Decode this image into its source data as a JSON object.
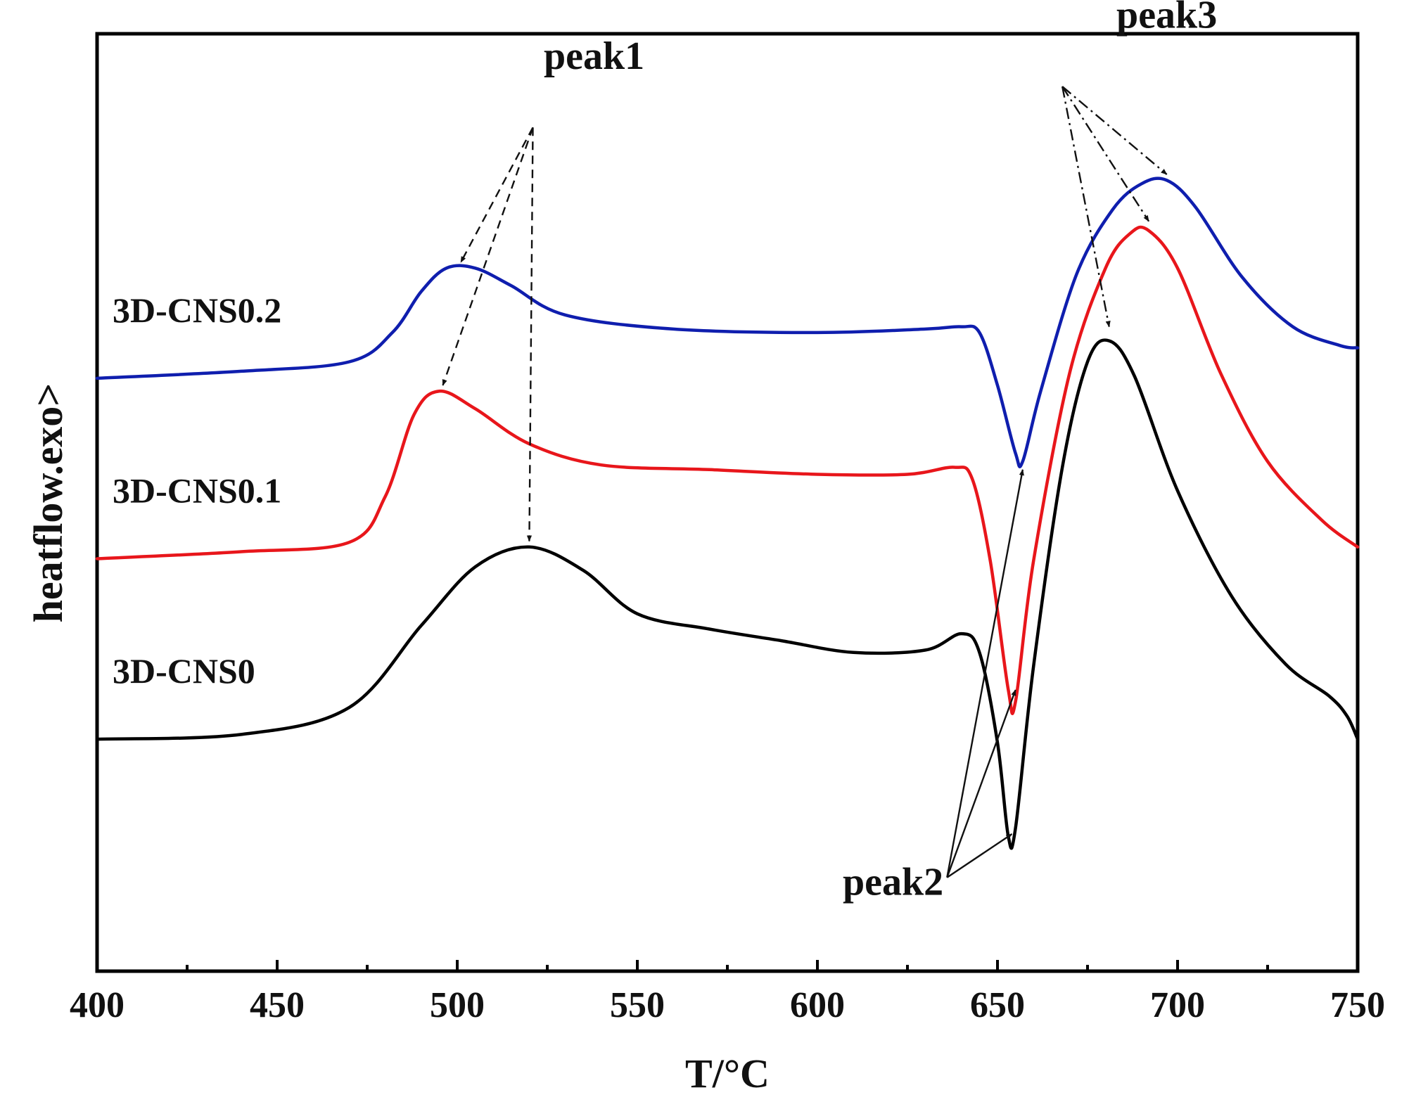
{
  "chart_data": {
    "type": "line",
    "title": "",
    "xlabel": "T/°C",
    "ylabel": "heatflow.exo>",
    "xlim": [
      400,
      750
    ],
    "ylim": [
      0,
      8
    ],
    "x_major_ticks": [
      400,
      450,
      500,
      550,
      600,
      650,
      700,
      750
    ],
    "x_minor_ticks": [
      425,
      475,
      525,
      575,
      625,
      675,
      725
    ],
    "grid": false,
    "y_tick_labels_shown": false,
    "series": [
      {
        "name": "3D-CNS0",
        "label": "3D-CNS0",
        "color": "#000000",
        "points": [
          [
            400,
            1.98
          ],
          [
            440,
            2.02
          ],
          [
            470,
            2.25
          ],
          [
            490,
            2.95
          ],
          [
            505,
            3.45
          ],
          [
            520,
            3.62
          ],
          [
            535,
            3.42
          ],
          [
            550,
            3.05
          ],
          [
            570,
            2.92
          ],
          [
            590,
            2.82
          ],
          [
            610,
            2.72
          ],
          [
            630,
            2.74
          ],
          [
            640,
            2.88
          ],
          [
            645,
            2.72
          ],
          [
            650,
            1.95
          ],
          [
            653,
            1.15
          ],
          [
            655,
            1.22
          ],
          [
            660,
            2.6
          ],
          [
            668,
            4.3
          ],
          [
            675,
            5.2
          ],
          [
            681,
            5.38
          ],
          [
            688,
            5.08
          ],
          [
            700,
            4.1
          ],
          [
            715,
            3.2
          ],
          [
            730,
            2.62
          ],
          [
            742,
            2.35
          ],
          [
            747,
            2.18
          ],
          [
            750,
            1.98
          ]
        ]
      },
      {
        "name": "3D-CNS0.1",
        "label": "3D-CNS0.1",
        "color": "#e8161b",
        "points": [
          [
            400,
            3.52
          ],
          [
            440,
            3.58
          ],
          [
            470,
            3.66
          ],
          [
            480,
            4.05
          ],
          [
            488,
            4.75
          ],
          [
            495,
            4.95
          ],
          [
            505,
            4.8
          ],
          [
            520,
            4.5
          ],
          [
            540,
            4.32
          ],
          [
            570,
            4.28
          ],
          [
            600,
            4.24
          ],
          [
            625,
            4.24
          ],
          [
            638,
            4.3
          ],
          [
            643,
            4.2
          ],
          [
            648,
            3.5
          ],
          [
            653,
            2.4
          ],
          [
            655,
            2.3
          ],
          [
            660,
            3.5
          ],
          [
            670,
            5.1
          ],
          [
            680,
            6.0
          ],
          [
            687,
            6.3
          ],
          [
            692,
            6.32
          ],
          [
            700,
            6.0
          ],
          [
            712,
            5.1
          ],
          [
            725,
            4.35
          ],
          [
            740,
            3.85
          ],
          [
            750,
            3.62
          ]
        ]
      },
      {
        "name": "3D-CNS0.2",
        "label": "3D-CNS0.2",
        "color": "#0f1eae",
        "points": [
          [
            400,
            5.06
          ],
          [
            440,
            5.12
          ],
          [
            470,
            5.2
          ],
          [
            482,
            5.45
          ],
          [
            490,
            5.8
          ],
          [
            497,
            6.0
          ],
          [
            505,
            6.0
          ],
          [
            515,
            5.85
          ],
          [
            530,
            5.6
          ],
          [
            560,
            5.48
          ],
          [
            600,
            5.45
          ],
          [
            630,
            5.48
          ],
          [
            640,
            5.5
          ],
          [
            645,
            5.45
          ],
          [
            650,
            5.0
          ],
          [
            655,
            4.42
          ],
          [
            657,
            4.35
          ],
          [
            662,
            4.95
          ],
          [
            672,
            5.95
          ],
          [
            682,
            6.5
          ],
          [
            690,
            6.72
          ],
          [
            697,
            6.75
          ],
          [
            705,
            6.52
          ],
          [
            718,
            5.92
          ],
          [
            732,
            5.5
          ],
          [
            745,
            5.34
          ],
          [
            750,
            5.32
          ]
        ]
      }
    ],
    "annotations": [
      {
        "text": "peak1",
        "style": "dashed",
        "text_position": [
          538,
          7.7
        ],
        "arrow_origin": [
          521,
          7.2
        ],
        "targets": [
          [
            501,
            6.05
          ],
          [
            496,
            5.0
          ],
          [
            520,
            3.67
          ]
        ]
      },
      {
        "text": "peak2",
        "style": "solid",
        "text_position": [
          621,
          0.65
        ],
        "arrow_origin": [
          636,
          0.8
        ],
        "targets": [
          [
            657,
            4.28
          ],
          [
            655,
            2.4
          ],
          [
            654,
            1.17
          ]
        ]
      },
      {
        "text": "peak3",
        "style": "dash-dot",
        "text_position": [
          697,
          8.05
        ],
        "arrow_origin": [
          668,
          7.55
        ],
        "targets": [
          [
            697,
            6.8
          ],
          [
            692,
            6.4
          ],
          [
            681,
            5.5
          ]
        ]
      }
    ]
  }
}
